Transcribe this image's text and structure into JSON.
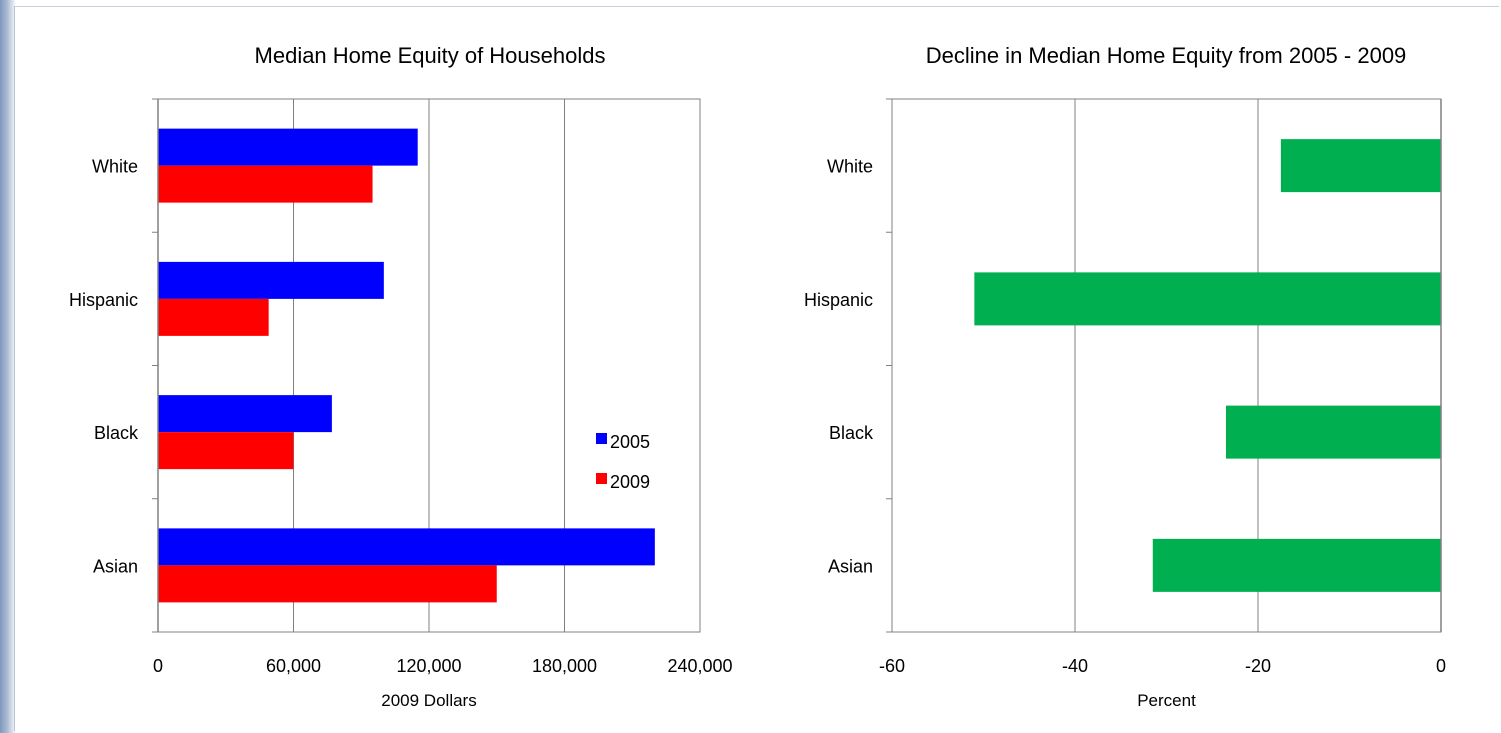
{
  "chart_data": [
    {
      "type": "bar",
      "orientation": "horizontal",
      "title": "Median Home Equity of Households",
      "xlabel": "2009  Dollars",
      "ylabel": "",
      "categories": [
        "White",
        "Hispanic",
        "Black",
        "Asian"
      ],
      "xlim": [
        0,
        240000
      ],
      "xticks": [
        0,
        60000,
        120000,
        180000,
        240000
      ],
      "xtick_labels": [
        "0",
        "60,000",
        "120,000",
        "180,000",
        "240,000"
      ],
      "grid": true,
      "legend_position": "right",
      "series": [
        {
          "name": "2005",
          "color": "#0000ff",
          "values": [
            115000,
            100000,
            77000,
            220000
          ]
        },
        {
          "name": "2009",
          "color": "#ff0000",
          "values": [
            95000,
            49000,
            60000,
            150000
          ]
        }
      ]
    },
    {
      "type": "bar",
      "orientation": "horizontal",
      "title": "Decline in Median Home Equity from 2005 - 2009",
      "xlabel": "Percent",
      "ylabel": "",
      "categories": [
        "White",
        "Hispanic",
        "Black",
        "Asian"
      ],
      "xlim": [
        -60,
        0
      ],
      "xticks": [
        -60,
        -40,
        -20,
        0
      ],
      "xtick_labels": [
        "-60",
        "-40",
        "-20",
        "0"
      ],
      "grid": true,
      "series": [
        {
          "color": "#00b050",
          "values": [
            -17.5,
            -51,
            -23.5,
            -31.5
          ]
        }
      ]
    }
  ]
}
